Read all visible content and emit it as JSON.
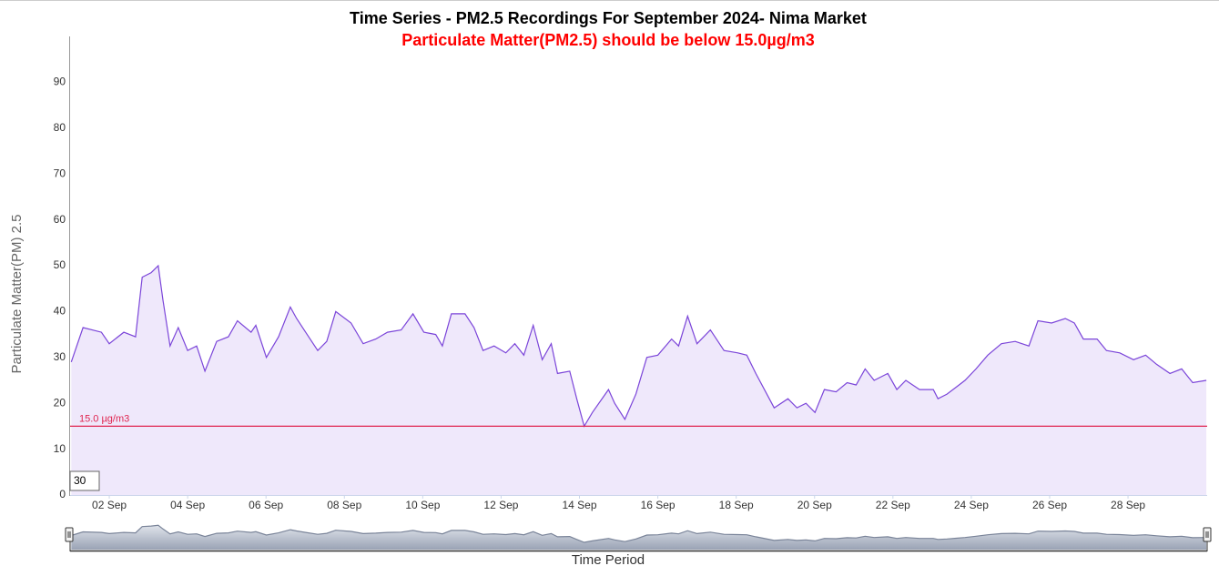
{
  "chart_data": {
    "type": "area",
    "title": "Time Series - PM2.5 Recordings For September 2024- Nima Market",
    "subtitle": "Particulate Matter(PM2.5) should be below 15.0µg/m3",
    "y_axis_label": "Particulate Matter(PM) 2.5",
    "x_axis_label": "Time Period",
    "range_input": "30",
    "x": [
      1.03,
      1.33,
      1.8,
      2.0,
      2.37,
      2.67,
      2.84,
      3.07,
      3.25,
      3.37,
      3.55,
      3.76,
      4.0,
      4.23,
      4.44,
      4.74,
      5.04,
      5.27,
      5.62,
      5.74,
      6.01,
      6.32,
      6.62,
      6.78,
      7.01,
      7.32,
      7.55,
      7.78,
      8.17,
      8.48,
      8.8,
      9.1,
      9.45,
      9.75,
      10.03,
      10.33,
      10.5,
      10.73,
      11.08,
      11.31,
      11.54,
      11.82,
      12.12,
      12.35,
      12.58,
      12.82,
      13.05,
      13.28,
      13.44,
      13.75,
      13.93,
      14.12,
      14.33,
      14.74,
      14.9,
      15.16,
      15.44,
      15.72,
      16.0,
      16.35,
      16.53,
      16.76,
      17.0,
      17.34,
      17.69,
      18.04,
      18.27,
      18.5,
      18.97,
      19.32,
      19.55,
      19.78,
      20.01,
      20.25,
      20.55,
      20.83,
      21.06,
      21.29,
      21.52,
      21.87,
      22.1,
      22.33,
      22.68,
      23.03,
      23.15,
      23.38,
      23.61,
      23.84,
      24.12,
      24.42,
      24.77,
      25.12,
      25.47,
      25.7,
      26.05,
      26.4,
      26.63,
      26.86,
      27.21,
      27.45,
      27.79,
      28.14,
      28.45,
      28.73,
      29.07,
      29.37,
      29.65,
      30.0
    ],
    "series": [
      {
        "name": "PM2.5",
        "color": "#7b45d9",
        "fill": "#efe8fb",
        "values": [
          29,
          36.5,
          35.5,
          33,
          35.5,
          34.5,
          47.5,
          48.5,
          50,
          42.5,
          32.5,
          36.5,
          31.5,
          32.5,
          27,
          33.5,
          34.5,
          38,
          35.5,
          37,
          30,
          34.5,
          41,
          38.5,
          35.5,
          31.5,
          33.5,
          40,
          37.5,
          33,
          34,
          35.5,
          36,
          39.5,
          35.5,
          35,
          32.5,
          39.5,
          39.5,
          36.5,
          31.5,
          32.5,
          31,
          33,
          30.5,
          37,
          29.5,
          33,
          26.5,
          27,
          21,
          15,
          18,
          23,
          20,
          16.5,
          22,
          30,
          30.5,
          34,
          32.5,
          39,
          33,
          36,
          31.5,
          31,
          30.5,
          26.5,
          19,
          21,
          19,
          20,
          18,
          23,
          22.5,
          24.5,
          24,
          27.5,
          25,
          26.5,
          23,
          25,
          23,
          23,
          21,
          22,
          23.5,
          25,
          27.5,
          30.5,
          33,
          33.5,
          32.5,
          38,
          37.5,
          38.5,
          37.5,
          34,
          34,
          31.5,
          31,
          29.5,
          30.5,
          28.5,
          26.5,
          27.5,
          24.5,
          25
        ]
      }
    ],
    "threshold": {
      "value": 15,
      "label": "15.0 µg/m3",
      "color": "#e0244f"
    },
    "xlim": [
      1,
      30.02
    ],
    "xticks": [
      {
        "value": 2,
        "label": "02 Sep"
      },
      {
        "value": 4,
        "label": "04 Sep"
      },
      {
        "value": 6,
        "label": "06 Sep"
      },
      {
        "value": 8,
        "label": "08 Sep"
      },
      {
        "value": 10,
        "label": "10 Sep"
      },
      {
        "value": 12,
        "label": "12 Sep"
      },
      {
        "value": 14,
        "label": "14 Sep"
      },
      {
        "value": 16,
        "label": "16 Sep"
      },
      {
        "value": 18,
        "label": "18 Sep"
      },
      {
        "value": 20,
        "label": "20 Sep"
      },
      {
        "value": 22,
        "label": "22 Sep"
      },
      {
        "value": 24,
        "label": "24 Sep"
      },
      {
        "value": 26,
        "label": "26 Sep"
      },
      {
        "value": 28,
        "label": "28 Sep"
      }
    ],
    "ylim": [
      0,
      100
    ],
    "yticks": [
      0,
      10,
      20,
      30,
      40,
      50,
      60,
      70,
      80,
      90
    ],
    "grid": false,
    "navigator": true
  }
}
